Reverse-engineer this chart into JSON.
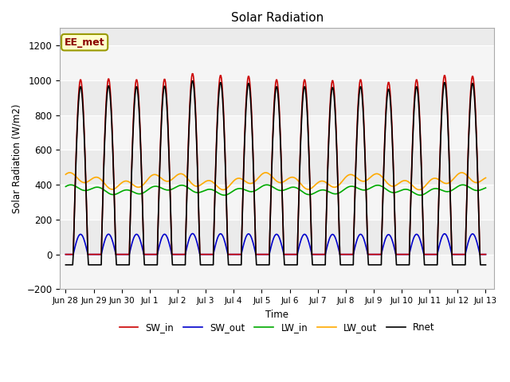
{
  "title": "Solar Radiation",
  "ylabel": "Solar Radiation (W/m2)",
  "xlabel": "Time",
  "annotation": "EE_met",
  "ylim": [
    -200,
    1300
  ],
  "yticks": [
    -200,
    0,
    200,
    400,
    600,
    800,
    1000,
    1200
  ],
  "colors": {
    "SW_in": "#cc0000",
    "SW_out": "#0000cc",
    "LW_in": "#00aa00",
    "LW_out": "#ffaa00",
    "Rnet": "#000000"
  },
  "tick_labels": [
    "Jun 28",
    "Jun 29",
    "Jun 30",
    "Jul 1",
    "Jul 2",
    "Jul 3",
    "Jul 4",
    "Jul 5",
    "Jul 6",
    "Jul 7",
    "Jul 8",
    "Jul 9",
    "Jul 10",
    "Jul 11",
    "Jul 12",
    "Jul 13"
  ],
  "background_color": "#ffffff",
  "plot_bg_color": "#ebebeb",
  "grid_color": "#ffffff",
  "linewidth": 1.2,
  "n_days": 15,
  "SW_in_peaks": [
    1005,
    1010,
    1005,
    1008,
    1040,
    1030,
    1025,
    1005,
    1005,
    1000,
    1005,
    990,
    1005,
    1030,
    1025
  ],
  "SW_out_scale": 0.115,
  "LW_in_base": 370,
  "LW_in_amp": 30,
  "LW_out_base": 420,
  "LW_out_amp": 50,
  "Rnet_night": -60,
  "sunrise": 6.0,
  "sunset": 19.5,
  "SW_sunrise": 6.5,
  "SW_sunset": 19.0
}
